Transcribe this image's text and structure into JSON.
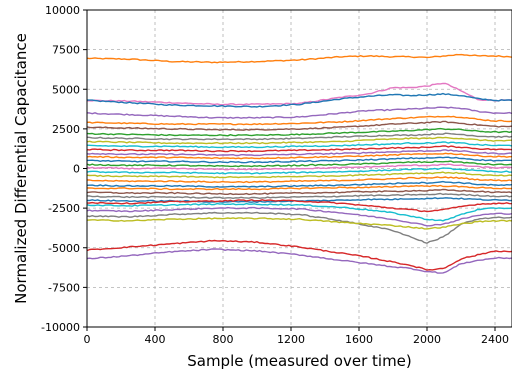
{
  "chart_data": {
    "type": "line",
    "title": "",
    "xlabel": "Sample (measured over time)",
    "ylabel": "Normalized Differential Capacitance",
    "xlim": [
      0,
      2500
    ],
    "ylim": [
      -10000,
      10000
    ],
    "grid": true,
    "legend": "none",
    "x_ticks": [
      0,
      400,
      800,
      1200,
      1600,
      2000,
      2400
    ],
    "x_tick_labels": [
      "0",
      "400",
      "800",
      "1200",
      "1600",
      "2000",
      "2400"
    ],
    "y_ticks": [
      10000,
      7500,
      5000,
      2500,
      0,
      -2500,
      -5000,
      -7500,
      -10000
    ],
    "y_tick_labels": [
      "10000",
      "7500",
      "5000",
      "2500",
      "0",
      "-2500",
      "-5000",
      "-7500",
      "-10000"
    ],
    "x": [
      0,
      250,
      500,
      750,
      1000,
      1250,
      1500,
      1650,
      1800,
      1900,
      2000,
      2100,
      2200,
      2300,
      2400,
      2500
    ],
    "series": [
      {
        "color": "#ff7f0e",
        "values": [
          6950,
          6900,
          6750,
          6700,
          6750,
          6850,
          7050,
          7100,
          7050,
          7050,
          7000,
          7100,
          7200,
          7100,
          7100,
          7050
        ]
      },
      {
        "color": "#e377c2",
        "values": [
          4300,
          4250,
          4150,
          4050,
          4050,
          4100,
          4500,
          4700,
          5100,
          5100,
          5200,
          5400,
          4900,
          4350,
          4300,
          4300
        ]
      },
      {
        "color": "#1f77b4",
        "values": [
          4300,
          4150,
          4000,
          3950,
          3900,
          4050,
          4400,
          4550,
          4650,
          4600,
          4650,
          4700,
          4600,
          4400,
          4300,
          4300
        ]
      },
      {
        "color": "#9467bd",
        "values": [
          3500,
          3400,
          3300,
          3200,
          3200,
          3250,
          3500,
          3650,
          3700,
          3750,
          3800,
          3850,
          3800,
          3600,
          3500,
          3500
        ]
      },
      {
        "color": "#ff7f0e",
        "values": [
          2900,
          2850,
          2800,
          2800,
          2800,
          2850,
          2950,
          3050,
          3150,
          3200,
          3250,
          3300,
          3250,
          3100,
          3000,
          3000
        ]
      },
      {
        "color": "#8c564b",
        "values": [
          2600,
          2550,
          2500,
          2450,
          2450,
          2500,
          2600,
          2700,
          2800,
          2850,
          2900,
          2950,
          2850,
          2750,
          2650,
          2650
        ]
      },
      {
        "color": "#2ca02c",
        "values": [
          2200,
          2150,
          2100,
          2100,
          2100,
          2150,
          2250,
          2300,
          2350,
          2400,
          2450,
          2500,
          2450,
          2350,
          2300,
          2300
        ]
      },
      {
        "color": "#7f7f7f",
        "values": [
          1950,
          1900,
          1850,
          1850,
          1850,
          1900,
          2000,
          2050,
          2100,
          2100,
          2150,
          2200,
          2150,
          2050,
          2000,
          2000
        ]
      },
      {
        "color": "#bcbd22",
        "values": [
          1700,
          1650,
          1600,
          1600,
          1600,
          1650,
          1700,
          1800,
          1850,
          1900,
          1900,
          1950,
          1900,
          1800,
          1750,
          1750
        ]
      },
      {
        "color": "#17becf",
        "values": [
          1450,
          1400,
          1400,
          1350,
          1350,
          1400,
          1450,
          1500,
          1550,
          1600,
          1600,
          1650,
          1600,
          1500,
          1450,
          1450
        ]
      },
      {
        "color": "#d62728",
        "values": [
          1200,
          1150,
          1150,
          1100,
          1100,
          1150,
          1200,
          1250,
          1300,
          1300,
          1350,
          1400,
          1350,
          1250,
          1200,
          1200
        ]
      },
      {
        "color": "#9467bd",
        "values": [
          950,
          900,
          900,
          850,
          850,
          900,
          950,
          1000,
          1050,
          1100,
          1100,
          1150,
          1100,
          1000,
          950,
          950
        ]
      },
      {
        "color": "#ff7f0e",
        "values": [
          750,
          700,
          700,
          650,
          650,
          700,
          750,
          800,
          850,
          900,
          900,
          950,
          900,
          800,
          750,
          750
        ]
      },
      {
        "color": "#1f77b4",
        "values": [
          500,
          450,
          450,
          400,
          400,
          450,
          500,
          550,
          600,
          650,
          650,
          700,
          650,
          550,
          500,
          500
        ]
      },
      {
        "color": "#2ca02c",
        "values": [
          250,
          200,
          200,
          150,
          150,
          200,
          250,
          300,
          350,
          400,
          400,
          450,
          400,
          300,
          250,
          250
        ]
      },
      {
        "color": "#e377c2",
        "values": [
          50,
          0,
          0,
          -50,
          -50,
          0,
          50,
          100,
          150,
          200,
          200,
          250,
          200,
          100,
          50,
          50
        ]
      },
      {
        "color": "#17becf",
        "values": [
          -200,
          -250,
          -250,
          -300,
          -300,
          -250,
          -200,
          -150,
          -100,
          -50,
          -50,
          0,
          -50,
          -150,
          -200,
          -200
        ]
      },
      {
        "color": "#bcbd22",
        "values": [
          -450,
          -500,
          -500,
          -550,
          -550,
          -500,
          -450,
          -400,
          -350,
          -300,
          -300,
          -250,
          -300,
          -400,
          -450,
          -450
        ]
      },
      {
        "color": "#ff7f0e",
        "values": [
          -750,
          -800,
          -800,
          -850,
          -850,
          -800,
          -750,
          -700,
          -650,
          -600,
          -600,
          -550,
          -600,
          -700,
          -750,
          -750
        ]
      },
      {
        "color": "#1f77b4",
        "values": [
          -1050,
          -1100,
          -1100,
          -1150,
          -1150,
          -1100,
          -1050,
          -1000,
          -950,
          -900,
          -900,
          -850,
          -900,
          -1000,
          -1050,
          -1050
        ]
      },
      {
        "color": "#ff7f0e",
        "values": [
          -1250,
          -1250,
          -1300,
          -1300,
          -1300,
          -1250,
          -1200,
          -1200,
          -1150,
          -1100,
          -1100,
          -1100,
          -1150,
          -1200,
          -1250,
          -1250
        ]
      },
      {
        "color": "#8c564b",
        "values": [
          -1500,
          -1550,
          -1550,
          -1600,
          -1600,
          -1550,
          -1500,
          -1450,
          -1450,
          -1400,
          -1400,
          -1350,
          -1400,
          -1450,
          -1500,
          -1500
        ]
      },
      {
        "color": "#7f7f7f",
        "values": [
          -1750,
          -1800,
          -1800,
          -1850,
          -1850,
          -1800,
          -1750,
          -1700,
          -1700,
          -1650,
          -1650,
          -1600,
          -1650,
          -1700,
          -1750,
          -1750
        ]
      },
      {
        "color": "#1f77b4",
        "values": [
          -2000,
          -2050,
          -2050,
          -2100,
          -2100,
          -2050,
          -2000,
          -1950,
          -1950,
          -1900,
          -1900,
          -1850,
          -1900,
          -1950,
          -2000,
          -2000
        ]
      },
      {
        "color": "#d62728",
        "values": [
          -2150,
          -2200,
          -2100,
          -2050,
          -2000,
          -2050,
          -2200,
          -2350,
          -2500,
          -2600,
          -2700,
          -2600,
          -2400,
          -2250,
          -2200,
          -2200
        ]
      },
      {
        "color": "#17becf",
        "values": [
          -2300,
          -2350,
          -2300,
          -2250,
          -2250,
          -2300,
          -2450,
          -2600,
          -2800,
          -3000,
          -3200,
          -3300,
          -2900,
          -2600,
          -2500,
          -2500
        ]
      },
      {
        "color": "#9467bd",
        "values": [
          -2650,
          -2700,
          -2600,
          -2500,
          -2500,
          -2550,
          -2800,
          -3000,
          -3200,
          -3400,
          -3600,
          -3500,
          -3200,
          -2950,
          -2850,
          -2850
        ]
      },
      {
        "color": "#7f7f7f",
        "values": [
          -3000,
          -3050,
          -2900,
          -2800,
          -2800,
          -2900,
          -3300,
          -3600,
          -3900,
          -4300,
          -4700,
          -4300,
          -3500,
          -3200,
          -3100,
          -3100
        ]
      },
      {
        "color": "#bcbd22",
        "values": [
          -3250,
          -3300,
          -3200,
          -3150,
          -3150,
          -3200,
          -3400,
          -3500,
          -3600,
          -3700,
          -3800,
          -3700,
          -3500,
          -3350,
          -3300,
          -3300
        ]
      },
      {
        "color": "#d62728",
        "values": [
          -5150,
          -4950,
          -4750,
          -4550,
          -4650,
          -4950,
          -5350,
          -5600,
          -5900,
          -6100,
          -6400,
          -6300,
          -5700,
          -5450,
          -5200,
          -5250
        ]
      },
      {
        "color": "#9467bd",
        "values": [
          -5700,
          -5500,
          -5250,
          -5100,
          -5200,
          -5450,
          -5800,
          -6000,
          -6200,
          -6300,
          -6500,
          -6600,
          -6000,
          -5800,
          -5650,
          -5650
        ]
      }
    ]
  }
}
